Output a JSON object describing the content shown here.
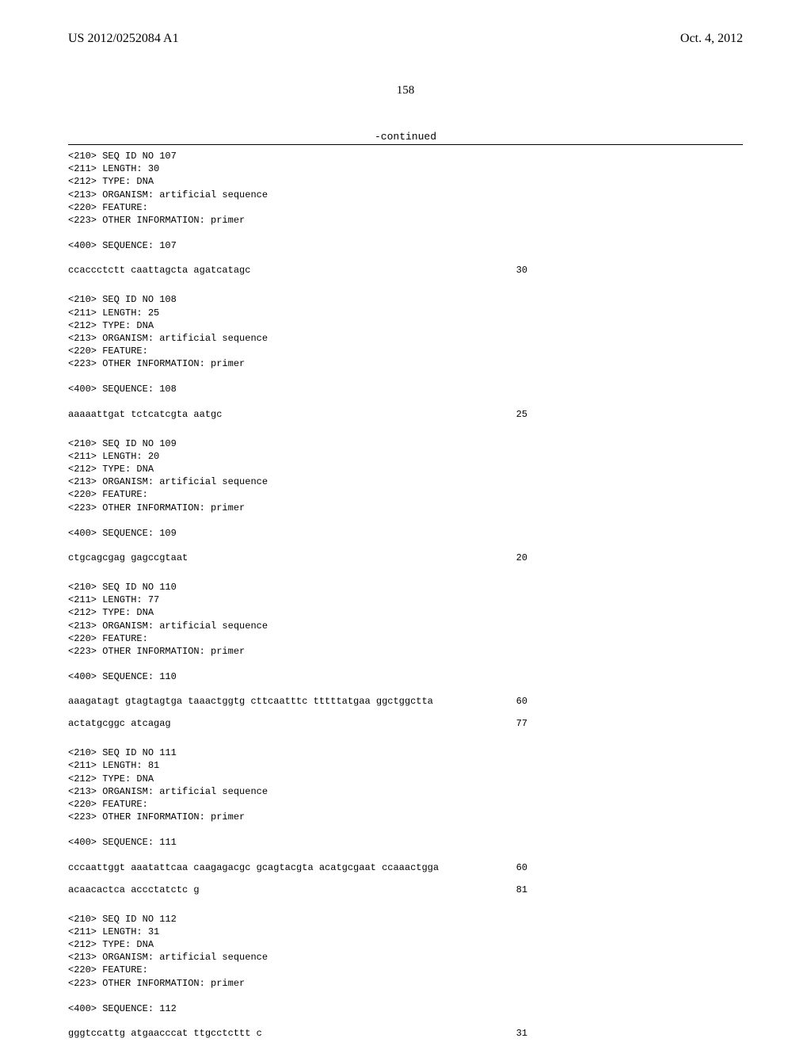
{
  "header": {
    "pub_number": "US 2012/0252084 A1",
    "pub_date": "Oct. 4, 2012",
    "page_number": "158",
    "continued": "-continued"
  },
  "sequences": [
    {
      "id": "107",
      "meta": "<210> SEQ ID NO 107\n<211> LENGTH: 30\n<212> TYPE: DNA\n<213> ORGANISM: artificial sequence\n<220> FEATURE:\n<223> OTHER INFORMATION: primer",
      "seq_label": "<400> SEQUENCE: 107",
      "lines": [
        {
          "text": "ccaccctctt caattagcta agatcatagc",
          "num": "30"
        }
      ]
    },
    {
      "id": "108",
      "meta": "<210> SEQ ID NO 108\n<211> LENGTH: 25\n<212> TYPE: DNA\n<213> ORGANISM: artificial sequence\n<220> FEATURE:\n<223> OTHER INFORMATION: primer",
      "seq_label": "<400> SEQUENCE: 108",
      "lines": [
        {
          "text": "aaaaattgat tctcatcgta aatgc",
          "num": "25"
        }
      ]
    },
    {
      "id": "109",
      "meta": "<210> SEQ ID NO 109\n<211> LENGTH: 20\n<212> TYPE: DNA\n<213> ORGANISM: artificial sequence\n<220> FEATURE:\n<223> OTHER INFORMATION: primer",
      "seq_label": "<400> SEQUENCE: 109",
      "lines": [
        {
          "text": "ctgcagcgag gagccgtaat",
          "num": "20"
        }
      ]
    },
    {
      "id": "110",
      "meta": "<210> SEQ ID NO 110\n<211> LENGTH: 77\n<212> TYPE: DNA\n<213> ORGANISM: artificial sequence\n<220> FEATURE:\n<223> OTHER INFORMATION: primer",
      "seq_label": "<400> SEQUENCE: 110",
      "lines": [
        {
          "text": "aaagatagt gtagtagtga taaactggtg cttcaatttc tttttatgaa ggctggctta",
          "num": "60"
        },
        {
          "text": "actatgcggc atcagag",
          "num": "77"
        }
      ]
    },
    {
      "id": "111",
      "meta": "<210> SEQ ID NO 111\n<211> LENGTH: 81\n<212> TYPE: DNA\n<213> ORGANISM: artificial sequence\n<220> FEATURE:\n<223> OTHER INFORMATION: primer",
      "seq_label": "<400> SEQUENCE: 111",
      "lines": [
        {
          "text": "cccaattggt aaatattcaa caagagacgc gcagtacgta acatgcgaat ccaaactgga",
          "num": "60"
        },
        {
          "text": "acaacactca accctatctc g",
          "num": "81"
        }
      ]
    },
    {
      "id": "112",
      "meta": "<210> SEQ ID NO 112\n<211> LENGTH: 31\n<212> TYPE: DNA\n<213> ORGANISM: artificial sequence\n<220> FEATURE:\n<223> OTHER INFORMATION: primer",
      "seq_label": "<400> SEQUENCE: 112",
      "lines": [
        {
          "text": "gggtccattg atgaacccat ttgcctcttt c",
          "num": "31"
        }
      ]
    }
  ]
}
